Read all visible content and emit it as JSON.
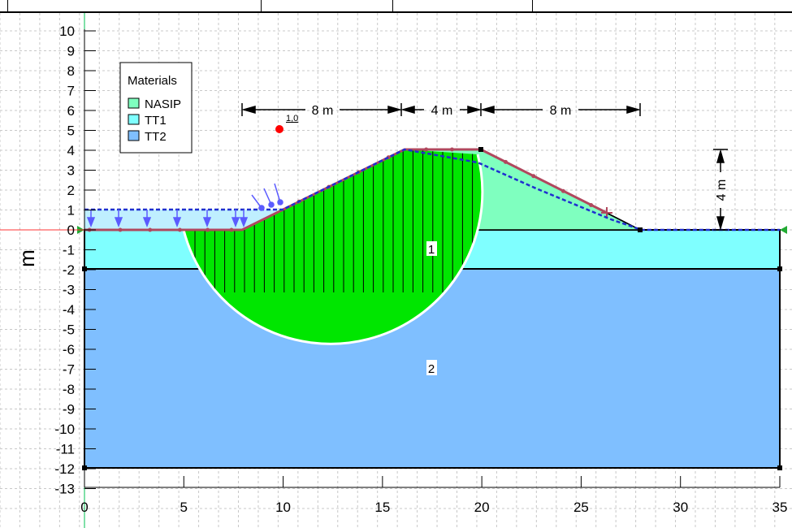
{
  "axes": {
    "x_ticks": [
      "0",
      "5",
      "10",
      "15",
      "20",
      "25",
      "30",
      "35"
    ],
    "y_ticks": [
      "10",
      "9",
      "8",
      "7",
      "6",
      "5",
      "4",
      "3",
      "2",
      "1",
      "0",
      "-1",
      "-2",
      "-3",
      "-4",
      "-5",
      "-6",
      "-7",
      "-8",
      "-9",
      "-10",
      "-11",
      "-12",
      "-13"
    ],
    "y_unit_label": "m"
  },
  "legend": {
    "title": "Materials",
    "items": [
      {
        "label": "NASIP",
        "color": "#7fffbf"
      },
      {
        "label": "TT1",
        "color": "#7fffff"
      },
      {
        "label": "TT2",
        "color": "#7fbfff"
      }
    ]
  },
  "dimensions": {
    "slope_left": "8 m",
    "crest": "4 m",
    "slope_right": "8 m",
    "embankment_height": "4 m"
  },
  "factor_of_safety": "1,0",
  "regions": {
    "layer1": "1",
    "layer2": "2"
  },
  "colors": {
    "nasip": "#7fffbf",
    "tt1": "#7fffff",
    "tt2": "#7fbfff",
    "ponded_water": "#bfefff",
    "slip_mass": "#00e600",
    "piezometric_line": "#1f2fd0",
    "ground_surface": "#b0485e",
    "axis_zero": "#ff3333",
    "grid_line": "#00c050"
  }
}
